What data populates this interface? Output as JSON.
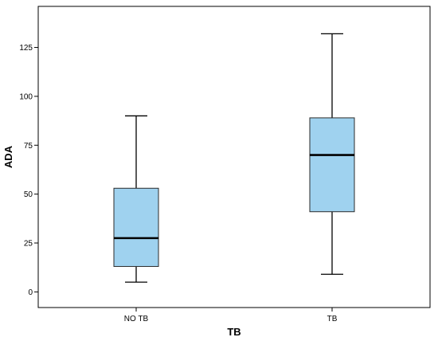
{
  "chart_data": {
    "type": "boxplot",
    "xlabel": "TB",
    "ylabel": "ADA",
    "ylim": [
      -8,
      146
    ],
    "yticks": [
      0,
      25,
      50,
      75,
      100,
      125
    ],
    "categories": [
      "NO TB",
      "TB"
    ],
    "boxes": [
      {
        "category": "NO TB",
        "min": 5,
        "q1": 13,
        "median": 27.5,
        "q3": 53,
        "max": 90
      },
      {
        "category": "TB",
        "min": 9,
        "q1": 41,
        "median": 70,
        "q3": 89,
        "max": 132
      }
    ],
    "grid": false,
    "colors": {
      "box_fill": "#9fd2ef",
      "box_stroke": "#2b2b2b",
      "median": "#000000",
      "axis": "#000000"
    }
  }
}
